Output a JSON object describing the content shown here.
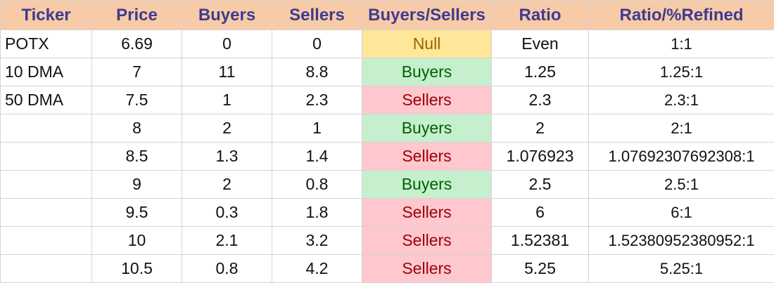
{
  "headers": [
    "Ticker",
    "Price",
    "Buyers",
    "Sellers",
    "Buyers/Sellers",
    "Ratio",
    "Ratio/%Refined"
  ],
  "rows": [
    {
      "ticker": "POTX",
      "price": "6.69",
      "buyers": "0",
      "sellers": "0",
      "bs": "Null",
      "ratio": "Even",
      "refined": "1:1"
    },
    {
      "ticker": "10 DMA",
      "price": "7",
      "buyers": "11",
      "sellers": "8.8",
      "bs": "Buyers",
      "ratio": "1.25",
      "refined": "1.25:1"
    },
    {
      "ticker": "50 DMA",
      "price": "7.5",
      "buyers": "1",
      "sellers": "2.3",
      "bs": "Sellers",
      "ratio": "2.3",
      "refined": "2.3:1"
    },
    {
      "ticker": "",
      "price": "8",
      "buyers": "2",
      "sellers": "1",
      "bs": "Buyers",
      "ratio": "2",
      "refined": "2:1"
    },
    {
      "ticker": "",
      "price": "8.5",
      "buyers": "1.3",
      "sellers": "1.4",
      "bs": "Sellers",
      "ratio": "1.076923",
      "refined": "1.07692307692308:1"
    },
    {
      "ticker": "",
      "price": "9",
      "buyers": "2",
      "sellers": "0.8",
      "bs": "Buyers",
      "ratio": "2.5",
      "refined": "2.5:1"
    },
    {
      "ticker": "",
      "price": "9.5",
      "buyers": "0.3",
      "sellers": "1.8",
      "bs": "Sellers",
      "ratio": "6",
      "refined": "6:1"
    },
    {
      "ticker": "",
      "price": "10",
      "buyers": "2.1",
      "sellers": "3.2",
      "bs": "Sellers",
      "ratio": "1.52381",
      "refined": "1.52380952380952:1"
    },
    {
      "ticker": "",
      "price": "10.5",
      "buyers": "0.8",
      "sellers": "4.2",
      "bs": "Sellers",
      "ratio": "5.25",
      "refined": "5.25:1"
    }
  ],
  "colors": {
    "header_bg": "#f8cba8",
    "header_text": "#3f3b8f",
    "null_bg": "#ffe699",
    "null_text": "#9c6500",
    "buyers_bg": "#c6efce",
    "buyers_text": "#006100",
    "sellers_bg": "#ffc7ce",
    "sellers_text": "#9c0006"
  }
}
